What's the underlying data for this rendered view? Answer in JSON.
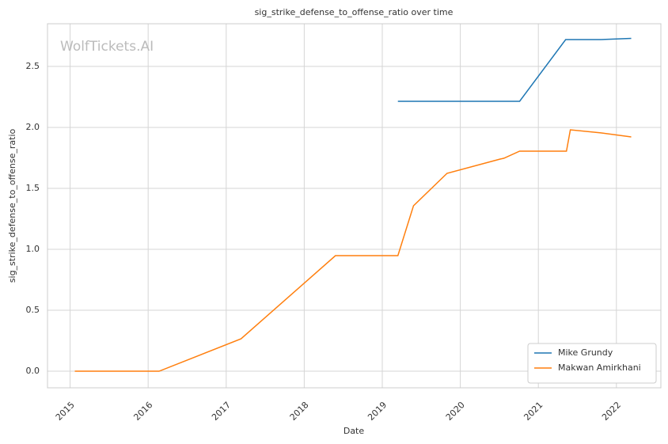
{
  "chart_data": {
    "type": "line",
    "title": "sig_strike_defense_to_offense_ratio over time",
    "xlabel": "Date",
    "ylabel": "sig_strike_defense_to_offense_ratio",
    "watermark": "WolfTickets.AI",
    "series": [
      {
        "name": "Mike Grundy",
        "color": "#1f77b4",
        "x": [
          2019.2,
          2020.76,
          2021.35,
          2021.8,
          2022.19
        ],
        "values": [
          2.214,
          2.214,
          2.72,
          2.72,
          2.73
        ]
      },
      {
        "name": "Makwan Amirkhani",
        "color": "#ff7f0e",
        "x": [
          2015.06,
          2016.14,
          2017.19,
          2018.4,
          2019.2,
          2019.4,
          2019.83,
          2020.51,
          2020.56,
          2020.76,
          2021.36,
          2021.41,
          2021.8,
          2022.19
        ],
        "values": [
          0,
          0,
          0.266,
          0.948,
          0.948,
          1.357,
          1.623,
          1.74,
          1.747,
          1.805,
          1.805,
          1.98,
          1.955,
          1.922
        ]
      }
    ],
    "xlim": [
      2014.71,
      2022.57
    ],
    "xticks": [
      2015,
      2016,
      2017,
      2018,
      2019,
      2020,
      2021,
      2022
    ],
    "ylim": [
      -0.136,
      2.85
    ],
    "yticks": [
      {
        "value": 0,
        "label": "0.0"
      },
      {
        "value": 0.5,
        "label": "0.5"
      },
      {
        "value": 1,
        "label": "1.0"
      },
      {
        "value": 1.5,
        "label": "1.5"
      },
      {
        "value": 2,
        "label": "2.0"
      },
      {
        "value": 2.5,
        "label": "2.5"
      }
    ],
    "grid": true,
    "legend": "lower right"
  }
}
